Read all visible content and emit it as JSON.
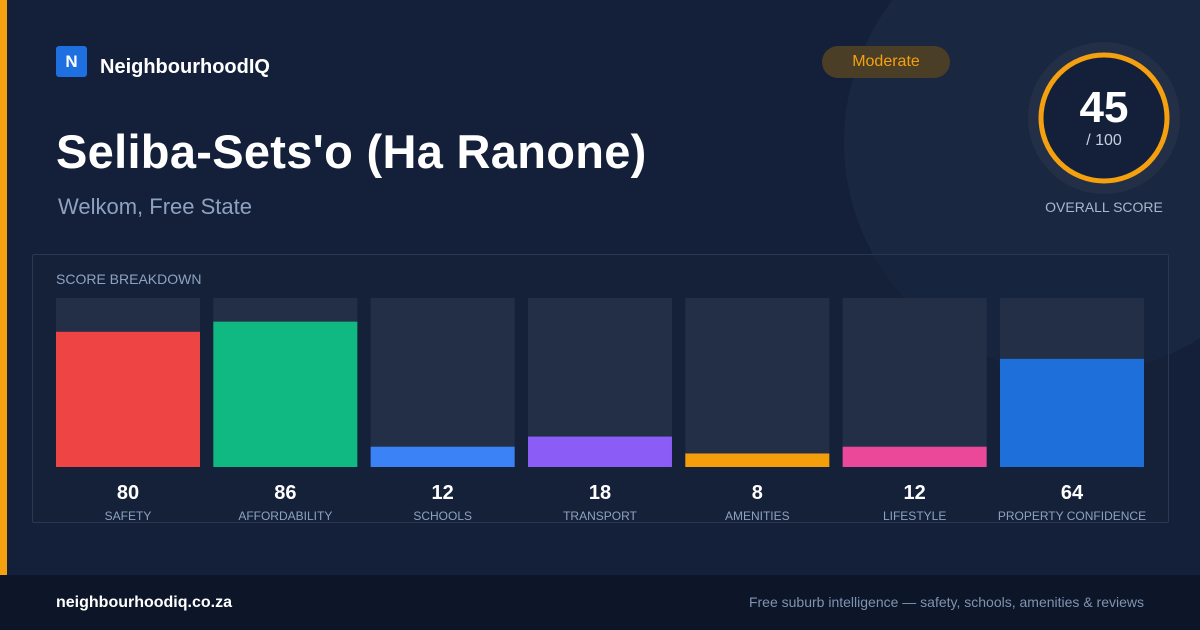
{
  "brand": {
    "logo_letter": "N",
    "name": "NeighbourhoodIQ"
  },
  "badge": {
    "label": "Moderate",
    "color": "#f5a10f"
  },
  "suburb": {
    "name": "Seliba-Sets'o (Ha Ranone)",
    "location": "Welkom, Free State"
  },
  "overall": {
    "score": "45",
    "max": "/ 100",
    "caption": "OVERALL SCORE",
    "ring_color": "#f5a10f"
  },
  "panel": {
    "title": "SCORE BREAKDOWN"
  },
  "footer": {
    "url": "neighbourhoodiq.co.za",
    "tagline": "Free suburb intelligence — safety, schools, amenities & reviews"
  },
  "chart_data": {
    "type": "bar",
    "categories": [
      "SAFETY",
      "AFFORDABILITY",
      "SCHOOLS",
      "TRANSPORT",
      "AMENITIES",
      "LIFESTYLE",
      "PROPERTY CONFIDENCE"
    ],
    "values": [
      80,
      86,
      12,
      18,
      8,
      12,
      64
    ],
    "colors": [
      "#ef4444",
      "#10b981",
      "#3b82f6",
      "#8b5cf6",
      "#f59e0b",
      "#ec4899",
      "#1e6fd9"
    ],
    "ylim": [
      0,
      100
    ],
    "grid": false,
    "legend": "none"
  }
}
